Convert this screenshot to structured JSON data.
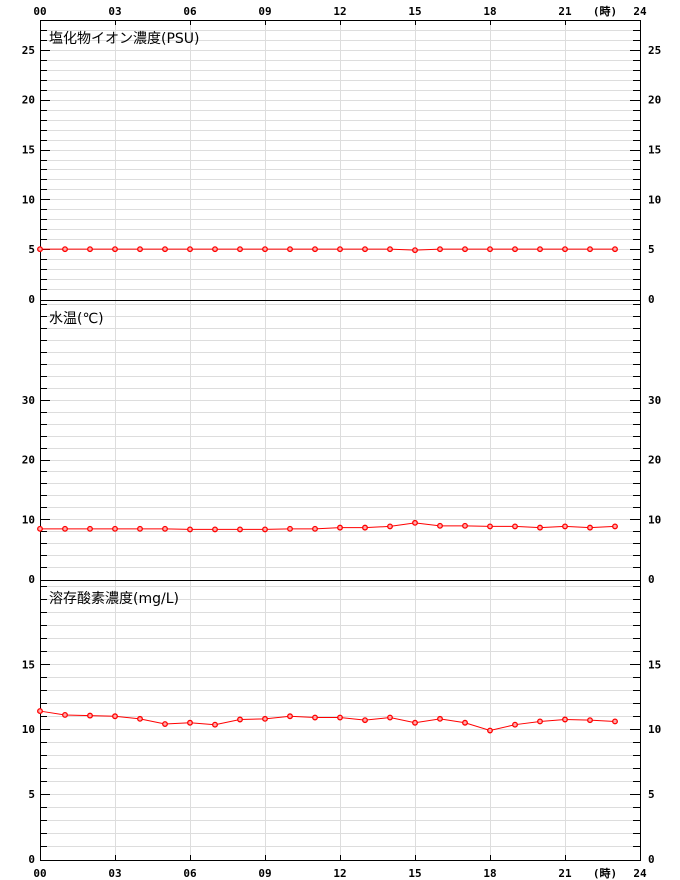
{
  "chart_data": [
    {
      "type": "line",
      "title": "塩化物イオン濃度(PSU)",
      "x_unit_label": "(時)",
      "x": [
        0,
        1,
        2,
        3,
        4,
        5,
        6,
        7,
        8,
        9,
        10,
        11,
        12,
        13,
        14,
        15,
        16,
        17,
        18,
        19,
        20,
        21,
        22,
        23
      ],
      "x_tick_labels": [
        "00",
        "03",
        "06",
        "09",
        "12",
        "15",
        "18",
        "21",
        "24"
      ],
      "xlim": [
        0,
        24
      ],
      "ylim": [
        0,
        28
      ],
      "y_tick_labels": [
        "0",
        "5",
        "10",
        "15",
        "20",
        "25"
      ],
      "y_minor_step": 1,
      "grid": true,
      "color": "#ff0000",
      "values": [
        5.0,
        5.0,
        5.0,
        5.0,
        5.0,
        5.0,
        5.0,
        5.0,
        5.0,
        5.0,
        5.0,
        5.0,
        5.0,
        5.0,
        5.0,
        4.9,
        5.0,
        5.0,
        5.0,
        5.0,
        5.0,
        5.0,
        5.0,
        5.0
      ]
    },
    {
      "type": "line",
      "title": "水温(℃)",
      "x": [
        0,
        1,
        2,
        3,
        4,
        5,
        6,
        7,
        8,
        9,
        10,
        11,
        12,
        13,
        14,
        15,
        16,
        17,
        18,
        19,
        20,
        21,
        22,
        23
      ],
      "xlim": [
        0,
        24
      ],
      "ylim": [
        0,
        46.7
      ],
      "y_tick_labels": [
        "0",
        "10",
        "20",
        "30"
      ],
      "y_minor_step": 2,
      "grid": true,
      "color": "#ff0000",
      "values": [
        8.4,
        8.4,
        8.4,
        8.4,
        8.4,
        8.4,
        8.3,
        8.3,
        8.3,
        8.3,
        8.4,
        8.4,
        8.6,
        8.6,
        8.8,
        9.4,
        8.9,
        8.9,
        8.8,
        8.8,
        8.6,
        8.8,
        8.6,
        8.8
      ]
    },
    {
      "type": "line",
      "title": "溶存酸素濃度(mg/L)",
      "x_unit_label": "(時)",
      "x": [
        0,
        1,
        2,
        3,
        4,
        5,
        6,
        7,
        8,
        9,
        10,
        11,
        12,
        13,
        14,
        15,
        16,
        17,
        18,
        19,
        20,
        21,
        22,
        23
      ],
      "x_tick_labels": [
        "00",
        "03",
        "06",
        "09",
        "12",
        "15",
        "18",
        "21",
        "24"
      ],
      "xlim": [
        0,
        24
      ],
      "ylim": [
        0,
        21.5
      ],
      "y_tick_labels": [
        "0",
        "5",
        "10",
        "15"
      ],
      "y_minor_step": 1,
      "grid": true,
      "color": "#ff0000",
      "values": [
        11.4,
        11.1,
        11.05,
        11.0,
        10.8,
        10.4,
        10.5,
        10.35,
        10.75,
        10.8,
        11.0,
        10.9,
        10.9,
        10.7,
        10.9,
        10.5,
        10.8,
        10.5,
        9.9,
        10.35,
        10.6,
        10.75,
        10.7,
        10.6
      ]
    }
  ]
}
